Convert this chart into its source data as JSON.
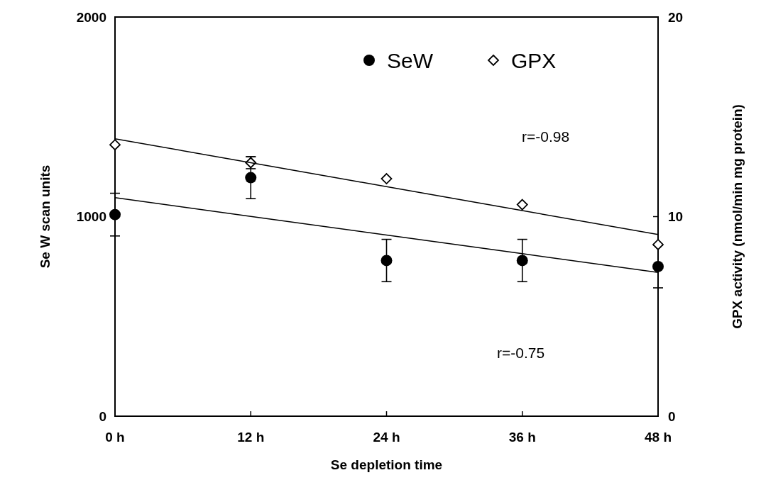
{
  "chart_data": {
    "type": "scatter",
    "xlabel": "Se depletion time",
    "ylabel": "Se W scan units",
    "y2label": "GPX activity (nmol/min mg protein)",
    "x": [
      0,
      12,
      24,
      36,
      48
    ],
    "xlim": [
      0,
      48
    ],
    "xticks": [
      {
        "value": 0,
        "label": "0 h"
      },
      {
        "value": 12,
        "label": "12 h"
      },
      {
        "value": 24,
        "label": "24 h"
      },
      {
        "value": 36,
        "label": "36 h"
      },
      {
        "value": 48,
        "label": "48 h"
      }
    ],
    "ylim": [
      0,
      2000
    ],
    "yticks": [
      0,
      1000,
      2000
    ],
    "y2lim": [
      0,
      20
    ],
    "y2ticks": [
      0,
      10,
      20
    ],
    "legend": "top right",
    "grid": false,
    "annotations": [
      "r=-0.98",
      "r=-0.75"
    ],
    "series": [
      {
        "name": "SeW",
        "color": "#000000",
        "marker": "circle",
        "values": [
          1010,
          1195,
          780,
          780,
          750
        ],
        "errors": [
          107,
          105,
          106,
          106,
          107
        ]
      },
      {
        "name": "GPX",
        "color": "#000000",
        "marker": "diamond",
        "axis": "y2",
        "values": [
          13.6,
          12.7,
          11.9,
          10.6,
          8.6
        ],
        "errors": [
          null,
          0.3,
          null,
          null,
          null
        ]
      },
      {
        "type": "line",
        "color": "#000000",
        "values": [
          1095,
          1001,
          908,
          814,
          720
        ]
      },
      {
        "type": "line",
        "color": "#000000",
        "axis": "y2",
        "values": [
          13.9,
          12.7,
          11.5,
          10.3,
          9.1
        ]
      }
    ]
  }
}
